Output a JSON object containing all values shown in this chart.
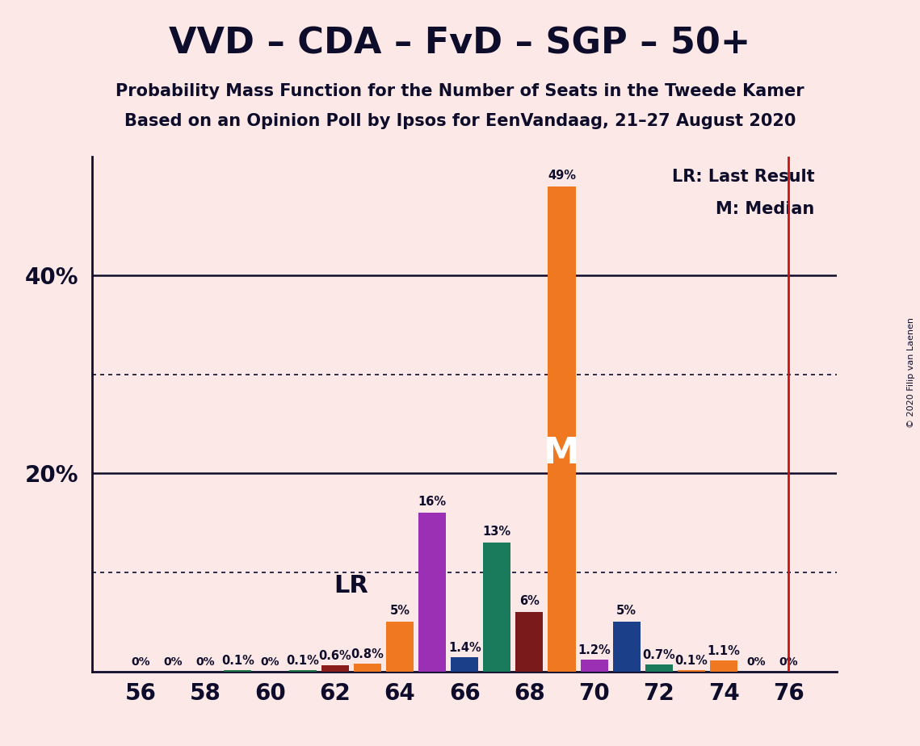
{
  "title": "VVD – CDA – FvD – SGP – 50+",
  "subtitle1": "Probability Mass Function for the Number of Seats in the Tweede Kamer",
  "subtitle2": "Based on an Opinion Poll by Ipsos for EenVandaag, 21–27 August 2020",
  "copyright": "© 2020 Filip van Laenen",
  "background_color": "#fce8e6",
  "seat_probs": [
    [
      56,
      0.0,
      "#f07820"
    ],
    [
      57,
      0.0,
      "#f07820"
    ],
    [
      58,
      0.0,
      "#f07820"
    ],
    [
      59,
      0.1,
      "#217a4a"
    ],
    [
      60,
      0.0,
      "#f07820"
    ],
    [
      61,
      0.1,
      "#217a4a"
    ],
    [
      62,
      0.6,
      "#8b1c1c"
    ],
    [
      63,
      0.8,
      "#f07820"
    ],
    [
      64,
      5.0,
      "#f07820"
    ],
    [
      65,
      16.0,
      "#9b30b5"
    ],
    [
      66,
      1.4,
      "#1c3f8a"
    ],
    [
      67,
      13.0,
      "#1a7a5c"
    ],
    [
      68,
      6.0,
      "#7a1a1a"
    ],
    [
      69,
      49.0,
      "#f07820"
    ],
    [
      70,
      1.2,
      "#9b30b5"
    ],
    [
      71,
      5.0,
      "#1c3f8a"
    ],
    [
      72,
      0.7,
      "#1a7a5c"
    ],
    [
      73,
      0.1,
      "#f07820"
    ],
    [
      74,
      1.1,
      "#f07820"
    ],
    [
      75,
      0.0,
      "#f07820"
    ],
    [
      76,
      0.0,
      "#f07820"
    ]
  ],
  "bar_labels": {
    "56": "0%",
    "57": "0%",
    "58": "0%",
    "59": "0.1%",
    "60": "0%",
    "61": "0.1%",
    "62": "0.6%",
    "63": "0.8%",
    "64": "5%",
    "65": "16%",
    "66": "1.4%",
    "67": "13%",
    "68": "6%",
    "69": "49%",
    "70": "1.2%",
    "71": "5%",
    "72": "0.7%",
    "73": "0.1%",
    "74": "1.1%",
    "75": "0%",
    "76": "0%"
  },
  "median_seat": 69,
  "lr_seat": 63,
  "lr_line_seat": 76,
  "xlim": [
    54.5,
    77.5
  ],
  "ylim": [
    0,
    52
  ],
  "solid_gridlines": [
    20.0,
    40.0
  ],
  "dotted_gridlines": [
    10.0,
    30.0
  ],
  "ytick_positions": [
    20.0,
    40.0
  ],
  "ytick_labels": [
    "20%",
    "40%"
  ],
  "xtick_positions": [
    56,
    58,
    60,
    62,
    64,
    66,
    68,
    70,
    72,
    74,
    76
  ],
  "legend_lr": "LR: Last Result",
  "legend_m": "M: Median",
  "median_label": "M",
  "lr_marker": "LR",
  "bar_width": 0.85
}
